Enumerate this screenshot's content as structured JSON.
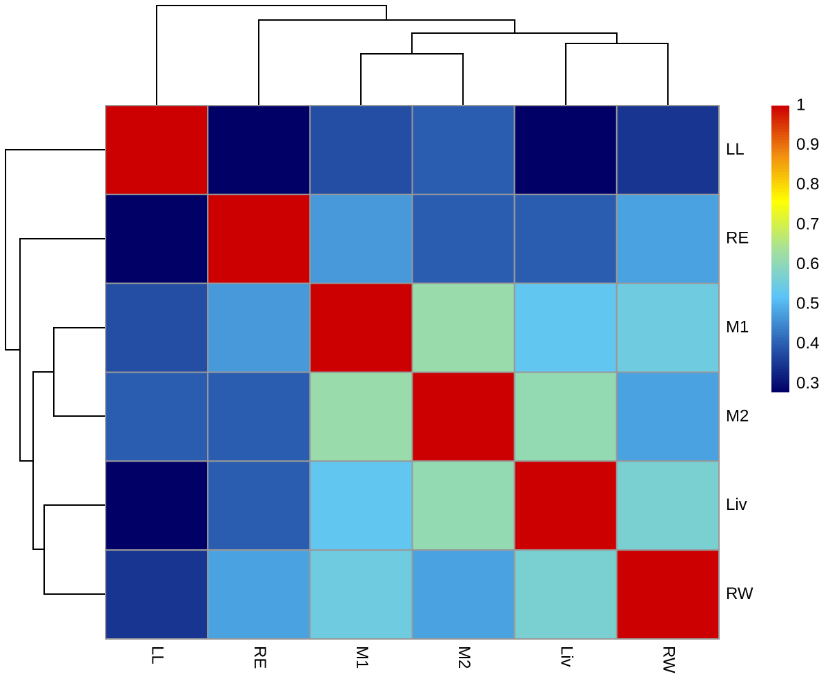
{
  "chart_data": {
    "type": "heatmap",
    "columns": [
      "LL",
      "RE",
      "M1",
      "M2",
      "Liv",
      "RW"
    ],
    "rows": [
      "LL",
      "RE",
      "M1",
      "M2",
      "Liv",
      "RW"
    ],
    "z": [
      [
        1,
        0.28,
        0.38,
        0.4,
        0.28,
        0.35
      ],
      [
        0.28,
        1,
        0.47,
        0.4,
        0.4,
        0.48
      ],
      [
        0.38,
        0.47,
        1,
        0.62,
        0.53,
        0.55
      ],
      [
        0.4,
        0.4,
        0.62,
        1,
        0.61,
        0.48
      ],
      [
        0.28,
        0.4,
        0.53,
        0.61,
        1,
        0.57
      ],
      [
        0.35,
        0.48,
        0.55,
        0.48,
        0.57,
        1
      ]
    ],
    "zlim": [
      0.28,
      1
    ],
    "zticks": [
      0.3,
      0.4,
      0.5,
      0.6,
      0.7,
      0.8,
      0.9,
      1
    ],
    "colors": [
      "#000066",
      "#2a5db0",
      "#5bc4f8",
      "#a6e09a",
      "#ffff00",
      "#f08a10",
      "#cc0000"
    ],
    "cell_border": "#999999"
  }
}
